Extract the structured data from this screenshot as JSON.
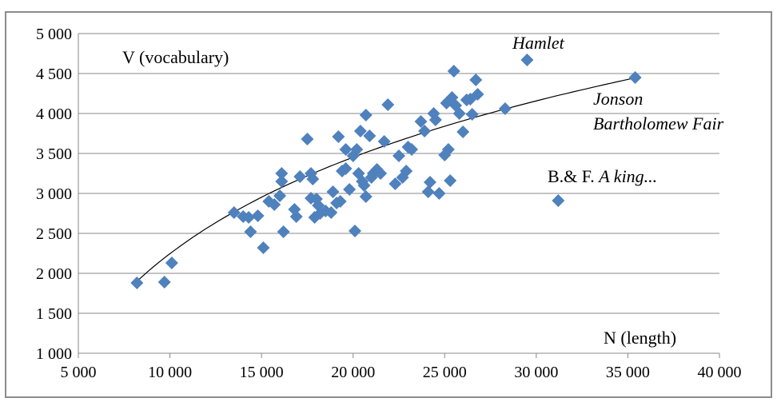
{
  "chart_data": {
    "type": "scatter",
    "title": "",
    "xlabel": "N (length)",
    "ylabel": "V (vocabulary)",
    "xlim": [
      5000,
      40000
    ],
    "ylim": [
      1000,
      5000
    ],
    "x_ticks": [
      5000,
      10000,
      15000,
      20000,
      25000,
      30000,
      35000,
      40000
    ],
    "x_tick_labels": [
      "5 000",
      "10 000",
      "15 000",
      "20 000",
      "25 000",
      "30 000",
      "35 000",
      "40 000"
    ],
    "y_ticks": [
      1000,
      1500,
      2000,
      2500,
      3000,
      3500,
      4000,
      4500,
      5000
    ],
    "y_tick_labels": [
      "1 000",
      "1 500",
      "2 000",
      "2 500",
      "3 000",
      "3 500",
      "4 000",
      "4 500",
      "5 000"
    ],
    "grid": "horizontal",
    "marker_color": "#4f81bd",
    "trend_color": "#000000",
    "series": [
      {
        "points": [
          [
            8200,
            1880
          ],
          [
            9700,
            1890
          ],
          [
            10100,
            2130
          ],
          [
            13500,
            2760
          ],
          [
            14000,
            2710
          ],
          [
            14300,
            2700
          ],
          [
            14400,
            2520
          ],
          [
            14800,
            2720
          ],
          [
            15100,
            2320
          ],
          [
            15400,
            2900
          ],
          [
            15700,
            2860
          ],
          [
            16000,
            2970
          ],
          [
            16100,
            3250
          ],
          [
            16100,
            3150
          ],
          [
            16200,
            2520
          ],
          [
            16800,
            2800
          ],
          [
            16900,
            2710
          ],
          [
            17100,
            3210
          ],
          [
            17500,
            3680
          ],
          [
            17700,
            3250
          ],
          [
            17700,
            2940
          ],
          [
            17800,
            3180
          ],
          [
            17900,
            2700
          ],
          [
            18000,
            2930
          ],
          [
            18100,
            2850
          ],
          [
            18200,
            2750
          ],
          [
            18500,
            2780
          ],
          [
            18800,
            2760
          ],
          [
            18900,
            3020
          ],
          [
            19100,
            2880
          ],
          [
            19200,
            3710
          ],
          [
            19300,
            2900
          ],
          [
            19400,
            3280
          ],
          [
            19600,
            3310
          ],
          [
            19600,
            3550
          ],
          [
            19800,
            3050
          ],
          [
            20000,
            3470
          ],
          [
            20100,
            2530
          ],
          [
            20200,
            3550
          ],
          [
            20300,
            3250
          ],
          [
            20400,
            3780
          ],
          [
            20500,
            3150
          ],
          [
            20600,
            3100
          ],
          [
            20700,
            3980
          ],
          [
            20700,
            2960
          ],
          [
            20900,
            3720
          ],
          [
            21000,
            3200
          ],
          [
            21100,
            3250
          ],
          [
            21300,
            3300
          ],
          [
            21500,
            3250
          ],
          [
            21700,
            3650
          ],
          [
            21900,
            4110
          ],
          [
            22300,
            3120
          ],
          [
            22500,
            3470
          ],
          [
            22700,
            3200
          ],
          [
            22900,
            3280
          ],
          [
            23000,
            3580
          ],
          [
            23200,
            3550
          ],
          [
            23700,
            3900
          ],
          [
            23900,
            3780
          ],
          [
            24100,
            3020
          ],
          [
            24200,
            3140
          ],
          [
            24400,
            4000
          ],
          [
            24500,
            3920
          ],
          [
            24700,
            3000
          ],
          [
            25000,
            3480
          ],
          [
            25100,
            4130
          ],
          [
            25200,
            3550
          ],
          [
            25300,
            3160
          ],
          [
            25400,
            4200
          ],
          [
            25500,
            4530
          ],
          [
            25600,
            4100
          ],
          [
            25800,
            4000
          ],
          [
            26000,
            3770
          ],
          [
            26200,
            4170
          ],
          [
            26400,
            4180
          ],
          [
            26500,
            3990
          ],
          [
            26700,
            4420
          ],
          [
            26800,
            4240
          ],
          [
            28300,
            4060
          ],
          [
            29500,
            4670
          ],
          [
            31200,
            2910
          ],
          [
            35400,
            4450
          ]
        ]
      }
    ],
    "trendline": {
      "type": "logarithmic",
      "x_range": [
        8200,
        35400
      ],
      "coefficients": {
        "a": 1740,
        "b": -13780
      }
    },
    "annotations": [
      {
        "id": "hamlet",
        "text": "Hamlet",
        "italic": true
      },
      {
        "id": "jonson1",
        "text": "Jonson",
        "italic": true
      },
      {
        "id": "jonson2",
        "text": "Bartholomew Fair",
        "italic": true
      },
      {
        "id": "bf_prefix",
        "text": "B.& F. ",
        "italic": false
      },
      {
        "id": "bf_title",
        "text": "A king...",
        "italic": true
      }
    ]
  }
}
